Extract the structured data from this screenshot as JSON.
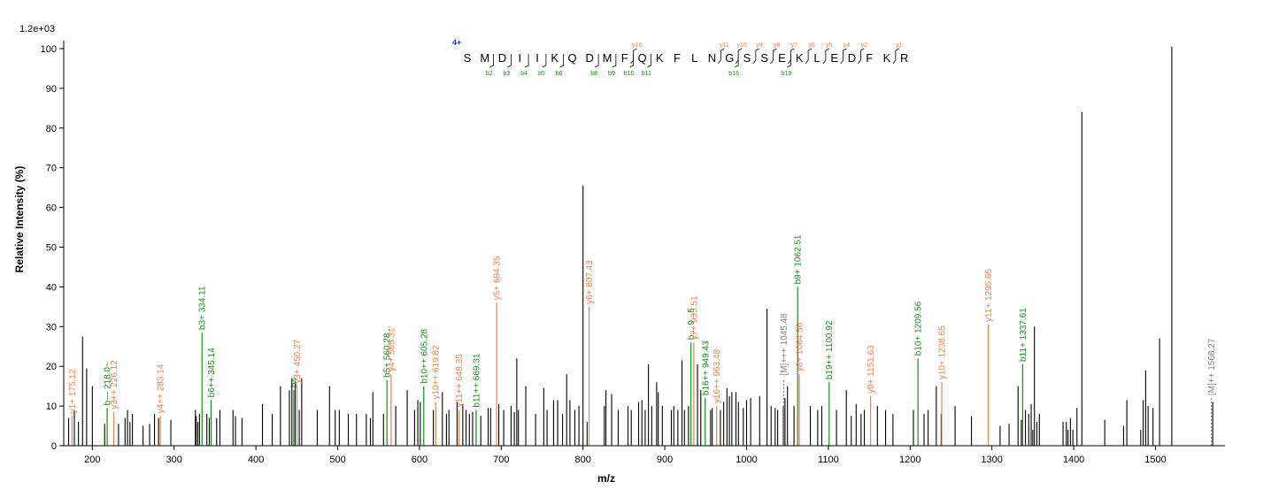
{
  "chart_data": {
    "type": "bar",
    "title": "",
    "xlabel": "m/z",
    "ylabel": "Relative Intensity (%)",
    "scale_label": "1.2e+03",
    "xlim": [
      165,
      1585
    ],
    "ylim": [
      0,
      102
    ],
    "x_ticks": [
      200,
      300,
      400,
      500,
      600,
      700,
      800,
      900,
      1000,
      1100,
      1200,
      1300,
      1400,
      1500
    ],
    "y_ticks": [
      0,
      10,
      20,
      30,
      40,
      50,
      60,
      70,
      80,
      90,
      100
    ],
    "colors": {
      "y_ion": "#e8804a",
      "b_ion": "#1a8a1a",
      "precursor": "#808080",
      "unassigned": "#000000",
      "charge": "#1a3aa8"
    },
    "peptide": {
      "charge": "4+",
      "sequence": [
        "S",
        "M",
        "D",
        "I",
        "I",
        "K",
        "Q",
        "D",
        "M",
        "F",
        "Q",
        "K",
        "F",
        "L",
        "N",
        "G",
        "S",
        "S",
        "E",
        "K",
        "L",
        "E",
        "D",
        "F",
        "K",
        "R"
      ],
      "y_fragments": [
        {
          "after": 10,
          "label": "y16"
        },
        {
          "after": 15,
          "label": "y11"
        },
        {
          "after": 16,
          "label": "y10"
        },
        {
          "after": 17,
          "label": "y9"
        },
        {
          "after": 18,
          "label": "y8"
        },
        {
          "after": 19,
          "label": "y7"
        },
        {
          "after": 20,
          "label": "y6"
        },
        {
          "after": 21,
          "label": "y5"
        },
        {
          "after": 22,
          "label": "y4"
        },
        {
          "after": 23,
          "label": "y2"
        },
        {
          "after": 25,
          "label": "y1"
        }
      ],
      "b_fragments": [
        {
          "after": 2,
          "label": "b2"
        },
        {
          "after": 3,
          "label": "b3"
        },
        {
          "after": 4,
          "label": "b4"
        },
        {
          "after": 5,
          "label": "b5"
        },
        {
          "after": 6,
          "label": "b6"
        },
        {
          "after": 8,
          "label": "b8"
        },
        {
          "after": 9,
          "label": "b9"
        },
        {
          "after": 10,
          "label": "b10"
        },
        {
          "after": 11,
          "label": "b11"
        },
        {
          "after": 16,
          "label": "b16"
        },
        {
          "after": 19,
          "label": "b19"
        }
      ]
    },
    "annotated_peaks": [
      {
        "mz": 175.12,
        "rel": 7.5,
        "ion": "y",
        "label": "y1+ 175.12"
      },
      {
        "mz": 218.1,
        "rel": 9.5,
        "ion": "b",
        "label": "b--- 218.0~"
      },
      {
        "mz": 226.12,
        "rel": 8.5,
        "ion": "y",
        "label": "y3++ 226.12"
      },
      {
        "mz": 283.14,
        "rel": 7.5,
        "ion": "y",
        "label": "y4++ 283.14"
      },
      {
        "mz": 334.11,
        "rel": 28.5,
        "ion": "b",
        "label": "b3+ 334.11"
      },
      {
        "mz": 345.14,
        "rel": 11.5,
        "ion": "b",
        "label": "b6++ 345.14"
      },
      {
        "mz": 446.3,
        "rel": 14.0,
        "ion": "b",
        "label": "b4"
      },
      {
        "mz": 450.27,
        "rel": 15.0,
        "ion": "y",
        "label": "y3+ 450.27"
      },
      {
        "mz": 560.28,
        "rel": 16.5,
        "ion": "b",
        "label": "b5+ 560.28..."
      },
      {
        "mz": 565.31,
        "rel": 18.0,
        "ion": "y",
        "label": "y4+ 565.31"
      },
      {
        "mz": 605.28,
        "rel": 15.0,
        "ion": "b",
        "label": "b10++ 605.28"
      },
      {
        "mz": 619.82,
        "rel": 11.0,
        "ion": "y",
        "label": "y10++ 619.82"
      },
      {
        "mz": 648.35,
        "rel": 9.0,
        "ion": "y",
        "label": "y11++ 648.35"
      },
      {
        "mz": 669.31,
        "rel": 9.0,
        "ion": "b",
        "label": "b11++ 669.31"
      },
      {
        "mz": 694.35,
        "rel": 36.0,
        "ion": "y",
        "label": "y5+ 694.35"
      },
      {
        "mz": 807.43,
        "rel": 35.0,
        "ion": "y",
        "label": "y6+ 807.43"
      },
      {
        "mz": 932.0,
        "rel": 26.0,
        "ion": "b",
        "label": "b... 9...5"
      },
      {
        "mz": 935.51,
        "rel": 26.0,
        "ion": "y",
        "label": "y7+ 935.51"
      },
      {
        "mz": 949.43,
        "rel": 12.0,
        "ion": "b",
        "label": "b16++ 949.43"
      },
      {
        "mz": 963.48,
        "rel": 10.0,
        "ion": "y",
        "label": "y16++ 963.48"
      },
      {
        "mz": 1045.48,
        "rel": 17.0,
        "ion": "p",
        "label": "[M]+++ 1045.48"
      },
      {
        "mz": 1062.51,
        "rel": 40.0,
        "ion": "b",
        "label": "b9+ 1062.51"
      },
      {
        "mz": 1064.56,
        "rel": 18.0,
        "ion": "y",
        "label": "y8+ 1064.56"
      },
      {
        "mz": 1100.92,
        "rel": 16.0,
        "ion": "b",
        "label": "b19++ 1100.92"
      },
      {
        "mz": 1151.63,
        "rel": 12.5,
        "ion": "y",
        "label": "y9+ 1151.63"
      },
      {
        "mz": 1209.56,
        "rel": 22.0,
        "ion": "b",
        "label": "b10+ 1209.56"
      },
      {
        "mz": 1238.65,
        "rel": 16.0,
        "ion": "y",
        "label": "y10+ 1238.65"
      },
      {
        "mz": 1295.65,
        "rel": 30.5,
        "ion": "y",
        "label": "y11+ 1295.65"
      },
      {
        "mz": 1337.61,
        "rel": 20.5,
        "ion": "b",
        "label": "b11+ 1337.61"
      },
      {
        "mz": 1568.27,
        "rel": 12.0,
        "ion": "p",
        "label": "[M]++ 1568.27"
      }
    ],
    "unassigned_peaks": [
      [
        171,
        7
      ],
      [
        178,
        9
      ],
      [
        183,
        6
      ],
      [
        188,
        27.5
      ],
      [
        193,
        19.5
      ],
      [
        200,
        15
      ],
      [
        215,
        5.5
      ],
      [
        232,
        5.5
      ],
      [
        240,
        7
      ],
      [
        243,
        9
      ],
      [
        246,
        6
      ],
      [
        249,
        8
      ],
      [
        262,
        5
      ],
      [
        270,
        5.5
      ],
      [
        276,
        8
      ],
      [
        281,
        7
      ],
      [
        296,
        6.5
      ],
      [
        326,
        9
      ],
      [
        327,
        7.5
      ],
      [
        329,
        6
      ],
      [
        331,
        8
      ],
      [
        340,
        8
      ],
      [
        343,
        7
      ],
      [
        352,
        7
      ],
      [
        356,
        9
      ],
      [
        372,
        9
      ],
      [
        375,
        7.5
      ],
      [
        383,
        7
      ],
      [
        408,
        10.5
      ],
      [
        420,
        8
      ],
      [
        430,
        15
      ],
      [
        441,
        14
      ],
      [
        444,
        17
      ],
      [
        448,
        16
      ],
      [
        453,
        9
      ],
      [
        456,
        17
      ],
      [
        475,
        9
      ],
      [
        490,
        15
      ],
      [
        497,
        9
      ],
      [
        502,
        9
      ],
      [
        513,
        8
      ],
      [
        523,
        8
      ],
      [
        535,
        8
      ],
      [
        540,
        7
      ],
      [
        543,
        13.5
      ],
      [
        556,
        8
      ],
      [
        571,
        10
      ],
      [
        585,
        14
      ],
      [
        594,
        9
      ],
      [
        598,
        11.5
      ],
      [
        601,
        11
      ],
      [
        617,
        9
      ],
      [
        628,
        13.5
      ],
      [
        633,
        8
      ],
      [
        636,
        9
      ],
      [
        646,
        11
      ],
      [
        653,
        10.5
      ],
      [
        657,
        9
      ],
      [
        661,
        8
      ],
      [
        665,
        8.5
      ],
      [
        675,
        7.5
      ],
      [
        684,
        9.5
      ],
      [
        687,
        9.5
      ],
      [
        697,
        10.5
      ],
      [
        703,
        9
      ],
      [
        712,
        10
      ],
      [
        716,
        8.5
      ],
      [
        719,
        22
      ],
      [
        721,
        9
      ],
      [
        730,
        15
      ],
      [
        742,
        8
      ],
      [
        752,
        14.5
      ],
      [
        756,
        9
      ],
      [
        764,
        11.5
      ],
      [
        769,
        11.5
      ],
      [
        775,
        8
      ],
      [
        780,
        18
      ],
      [
        784,
        11.5
      ],
      [
        790,
        9
      ],
      [
        795,
        10
      ],
      [
        800,
        65.5
      ],
      [
        805,
        6
      ],
      [
        826,
        10
      ],
      [
        828,
        14
      ],
      [
        835,
        13
      ],
      [
        843,
        9
      ],
      [
        855,
        10
      ],
      [
        859,
        9
      ],
      [
        868,
        11
      ],
      [
        872,
        11.5
      ],
      [
        876,
        9
      ],
      [
        880,
        20.5
      ],
      [
        884,
        10
      ],
      [
        890,
        16
      ],
      [
        892,
        13.5
      ],
      [
        897,
        10
      ],
      [
        908,
        9
      ],
      [
        911,
        10
      ],
      [
        916,
        9
      ],
      [
        921,
        21.5
      ],
      [
        924,
        9
      ],
      [
        929,
        10
      ],
      [
        940,
        20.5
      ],
      [
        944,
        14
      ],
      [
        956,
        9
      ],
      [
        958,
        9.5
      ],
      [
        968,
        9
      ],
      [
        972,
        11
      ],
      [
        976,
        14.5
      ],
      [
        979,
        12.5
      ],
      [
        982,
        13.5
      ],
      [
        987,
        13.5
      ],
      [
        990,
        11
      ],
      [
        996,
        9.5
      ],
      [
        1000,
        11.5
      ],
      [
        1005,
        12
      ],
      [
        1016,
        12.5
      ],
      [
        1025,
        34.5
      ],
      [
        1030,
        10
      ],
      [
        1035,
        9.5
      ],
      [
        1038,
        9
      ],
      [
        1045,
        10
      ],
      [
        1047,
        12
      ],
      [
        1050,
        15
      ],
      [
        1058,
        10
      ],
      [
        1078,
        10
      ],
      [
        1087,
        9
      ],
      [
        1092,
        10
      ],
      [
        1110,
        9
      ],
      [
        1122,
        14
      ],
      [
        1128,
        7.5
      ],
      [
        1134,
        10.5
      ],
      [
        1140,
        8
      ],
      [
        1144,
        9
      ],
      [
        1160,
        10
      ],
      [
        1170,
        9
      ],
      [
        1179,
        8
      ],
      [
        1204,
        9
      ],
      [
        1217,
        8
      ],
      [
        1222,
        9
      ],
      [
        1232,
        15
      ],
      [
        1238,
        8
      ],
      [
        1255,
        10
      ],
      [
        1275,
        7.5
      ],
      [
        1310,
        5
      ],
      [
        1321,
        5.5
      ],
      [
        1332,
        15
      ],
      [
        1336,
        6.5
      ],
      [
        1341,
        9
      ],
      [
        1345,
        8
      ],
      [
        1348,
        10.5
      ],
      [
        1350,
        4
      ],
      [
        1352,
        30
      ],
      [
        1355,
        6
      ],
      [
        1358,
        8
      ],
      [
        1387,
        6
      ],
      [
        1391,
        6
      ],
      [
        1393,
        4
      ],
      [
        1396,
        7
      ],
      [
        1399,
        4
      ],
      [
        1404,
        9.5
      ],
      [
        1410,
        84
      ],
      [
        1438,
        6.5
      ],
      [
        1461,
        5
      ],
      [
        1465,
        11.5
      ],
      [
        1482,
        4
      ],
      [
        1485,
        11.5
      ],
      [
        1488,
        19
      ],
      [
        1491,
        10
      ],
      [
        1497,
        9.5
      ],
      [
        1505,
        27
      ],
      [
        1520,
        100.5
      ],
      [
        1570,
        11
      ]
    ]
  }
}
